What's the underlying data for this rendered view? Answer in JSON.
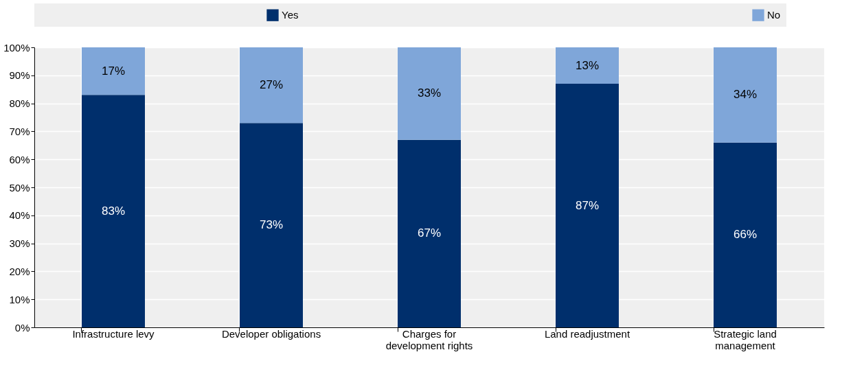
{
  "chart_data": {
    "type": "bar",
    "stacked": true,
    "categories": [
      "Infrastructure levy",
      "Developer obligations",
      "Charges for development rights",
      "Land readjustment",
      "Strategic land management"
    ],
    "series": [
      {
        "name": "Yes",
        "color": "#002f6c",
        "values": [
          83,
          73,
          67,
          87,
          66
        ],
        "value_labels": [
          "83%",
          "73%",
          "67%",
          "87%",
          "66%"
        ]
      },
      {
        "name": "No",
        "color": "#7fa6d9",
        "values": [
          17,
          27,
          33,
          13,
          34
        ],
        "value_labels": [
          "17%",
          "27%",
          "33%",
          "13%",
          "34%"
        ]
      }
    ],
    "ylim": [
      0,
      100
    ],
    "yticks": [
      {
        "value": 0,
        "label": "0%"
      },
      {
        "value": 10,
        "label": "10%"
      },
      {
        "value": 20,
        "label": "20%"
      },
      {
        "value": 30,
        "label": "30%"
      },
      {
        "value": 40,
        "label": "40%"
      },
      {
        "value": 50,
        "label": "50%"
      },
      {
        "value": 60,
        "label": "60%"
      },
      {
        "value": 70,
        "label": "70%"
      },
      {
        "value": 80,
        "label": "80%"
      },
      {
        "value": 90,
        "label": "90%"
      },
      {
        "value": 100,
        "label": "100%"
      }
    ],
    "grid": true,
    "legend": "top"
  }
}
